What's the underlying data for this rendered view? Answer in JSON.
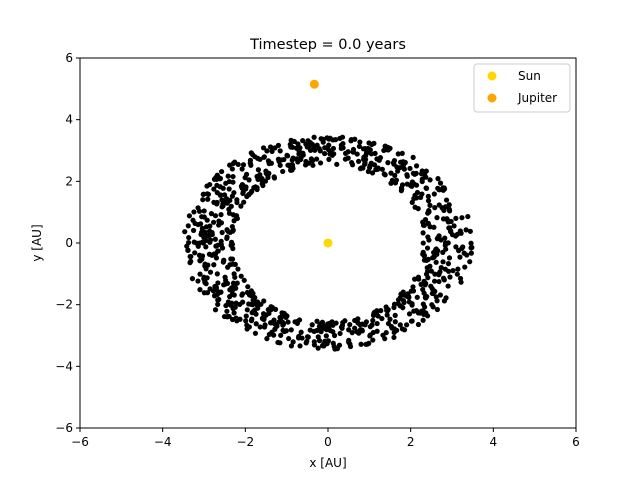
{
  "chart_data": {
    "type": "scatter",
    "title": "Timestep = 0.0 years",
    "xlabel": "x [AU]",
    "ylabel": "y [AU]",
    "xlim": [
      -6,
      6
    ],
    "ylim": [
      -6,
      6
    ],
    "xticks": [
      -6,
      -4,
      -2,
      0,
      2,
      4,
      6
    ],
    "yticks": [
      -6,
      -4,
      -2,
      0,
      2,
      4,
      6
    ],
    "xtick_labels": [
      "−6",
      "−4",
      "−2",
      "0",
      "2",
      "4",
      "6"
    ],
    "ytick_labels": [
      "−6",
      "−4",
      "−2",
      "0",
      "2",
      "4",
      "6"
    ],
    "grid": false,
    "legend_position": "top-right",
    "series": [
      {
        "name": "Sun",
        "color": "#ffd700",
        "points": [
          [
            0.0,
            0.0
          ]
        ]
      },
      {
        "name": "Jupiter",
        "color": "#ffa500",
        "points": [
          [
            -0.33,
            5.15
          ]
        ]
      },
      {
        "color": "#000000",
        "distribution": "ring",
        "count": 900,
        "ring": {
          "rx_inner": 2.3,
          "rx_outer": 3.5,
          "ry_inner": 2.55,
          "ry_outer": 3.45
        }
      }
    ]
  }
}
